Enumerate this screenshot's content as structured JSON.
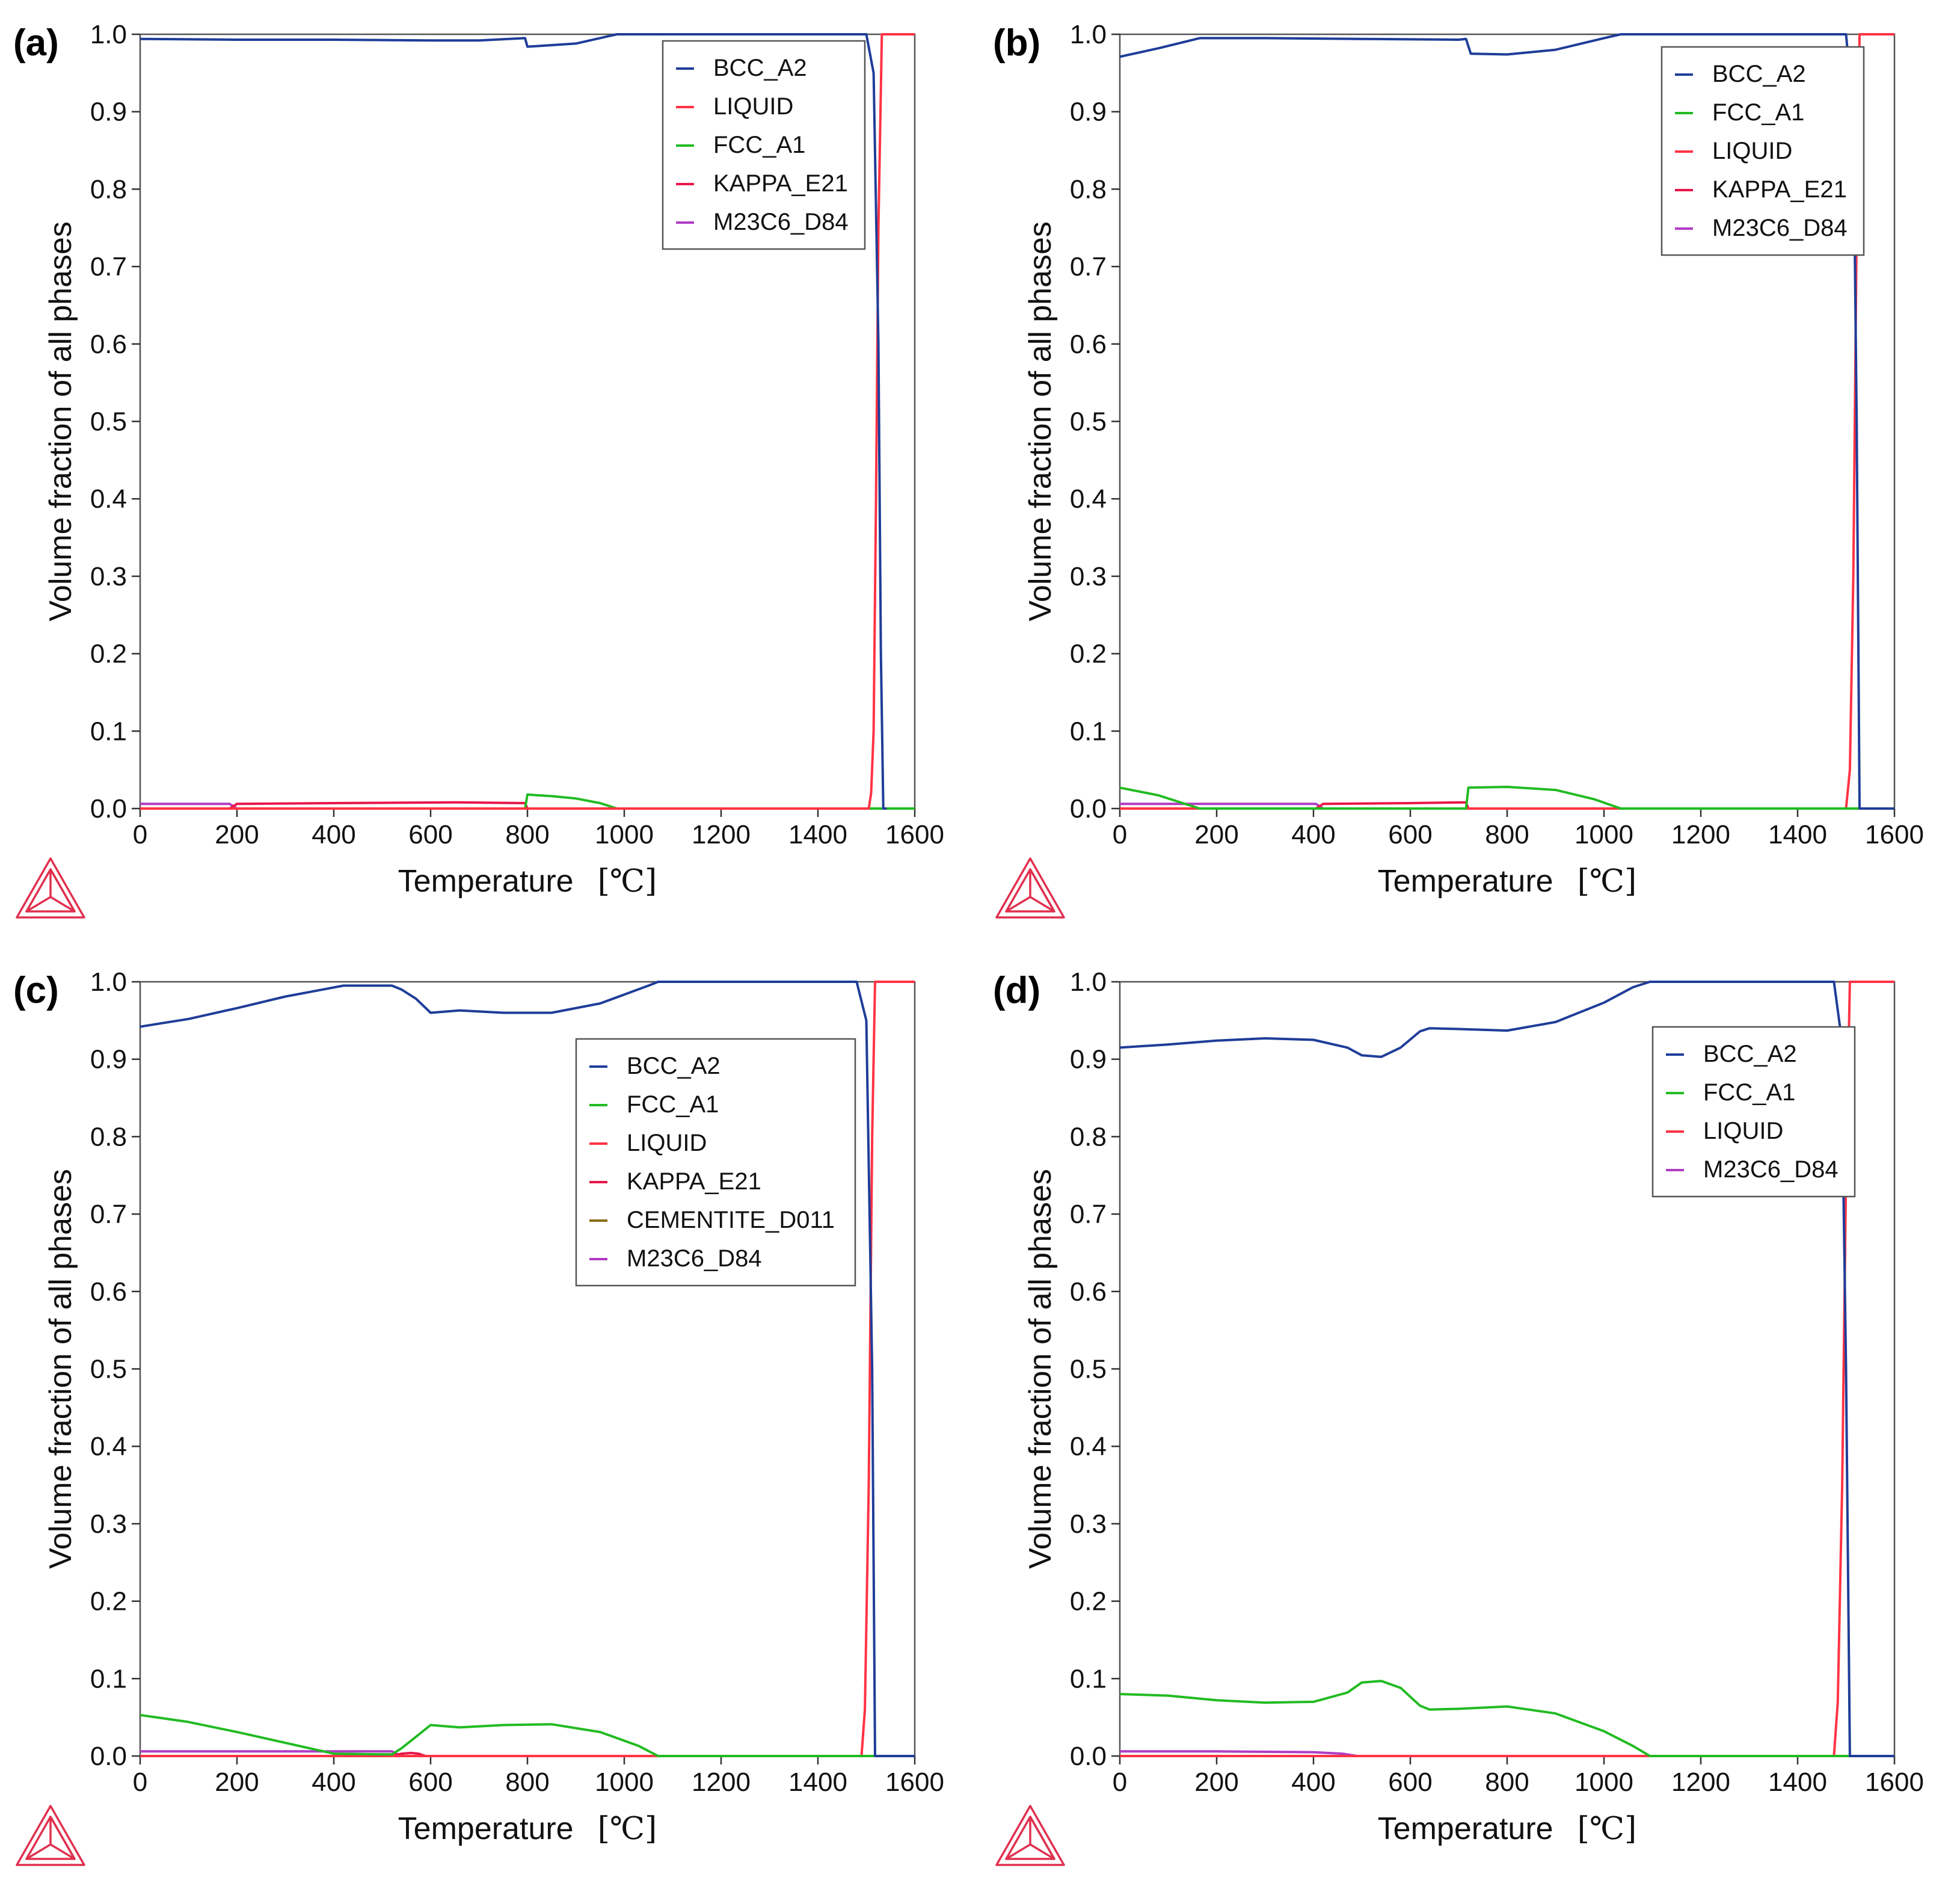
{
  "chart_data": [
    {
      "type": "line",
      "panel_label": "(a)",
      "title": "",
      "xlabel": "Temperature",
      "xunit": "[℃]",
      "ylabel": "Volume fraction of all phases",
      "xlim": [
        0,
        1600
      ],
      "ylim": [
        0,
        1.0
      ],
      "xticks": [
        "0",
        "200",
        "400",
        "600",
        "800",
        "1000",
        "1200",
        "1400",
        "1600"
      ],
      "yticks": [
        "0.0",
        "0.1",
        "0.2",
        "0.3",
        "0.4",
        "0.5",
        "0.6",
        "0.7",
        "0.8",
        "0.9",
        "1.0"
      ],
      "legend_position": "top-right",
      "series": [
        {
          "name": "BCC_A2",
          "color": "#1f3d99",
          "x": [
            0,
            200,
            400,
            600,
            700,
            795,
            800,
            900,
            985,
            1000,
            1500,
            1515,
            1525,
            1530,
            1535,
            1540
          ],
          "y": [
            0.994,
            0.993,
            0.993,
            0.992,
            0.992,
            0.995,
            0.984,
            0.988,
            1.0,
            1.0,
            1.0,
            0.95,
            0.6,
            0.2,
            0.0,
            0.0
          ]
        },
        {
          "name": "LIQUID",
          "color": "#ff3344",
          "x": [
            0,
            1505,
            1510,
            1515,
            1520,
            1525,
            1532,
            1540,
            1600
          ],
          "y": [
            0,
            0,
            0.02,
            0.1,
            0.4,
            0.75,
            1.0,
            1.0,
            1.0
          ]
        },
        {
          "name": "FCC_A1",
          "color": "#22bb22",
          "x": [
            0,
            795,
            800,
            850,
            900,
            950,
            985,
            1600
          ],
          "y": [
            0,
            0,
            0.018,
            0.016,
            0.013,
            0.007,
            0,
            0
          ]
        },
        {
          "name": "KAPPA_E21",
          "color": "#e8174a",
          "x": [
            0,
            185,
            200,
            400,
            650,
            795,
            800,
            1600
          ],
          "y": [
            0,
            0,
            0.006,
            0.007,
            0.008,
            0.007,
            0,
            0
          ]
        },
        {
          "name": "M23C6_D84",
          "color": "#b03cc4",
          "x": [
            0,
            185,
            200,
            1600
          ],
          "y": [
            0.006,
            0.006,
            0,
            0
          ]
        }
      ]
    },
    {
      "type": "line",
      "panel_label": "(b)",
      "title": "",
      "xlabel": "Temperature",
      "xunit": "[℃]",
      "ylabel": "Volume fraction of all phases",
      "xlim": [
        0,
        1600
      ],
      "ylim": [
        0,
        1.0
      ],
      "xticks": [
        "0",
        "200",
        "400",
        "600",
        "800",
        "1000",
        "1200",
        "1400",
        "1600"
      ],
      "yticks": [
        "0.0",
        "0.1",
        "0.2",
        "0.3",
        "0.4",
        "0.5",
        "0.6",
        "0.7",
        "0.8",
        "0.9",
        "1.0"
      ],
      "legend_position": "top-right",
      "series": [
        {
          "name": "BCC_A2",
          "color": "#1f3d99",
          "x": [
            0,
            80,
            165,
            300,
            500,
            700,
            715,
            725,
            800,
            900,
            1000,
            1035,
            1500,
            1515,
            1522,
            1528,
            1600
          ],
          "y": [
            0.971,
            0.982,
            0.995,
            0.995,
            0.994,
            0.993,
            0.994,
            0.975,
            0.974,
            0.98,
            0.995,
            1.0,
            1.0,
            0.9,
            0.5,
            0.0,
            0.0
          ]
        },
        {
          "name": "FCC_A1",
          "color": "#22bb22",
          "x": [
            0,
            80,
            165,
            715,
            720,
            800,
            900,
            980,
            1035,
            1600
          ],
          "y": [
            0.027,
            0.017,
            0,
            0,
            0.027,
            0.028,
            0.024,
            0.012,
            0,
            0
          ]
        },
        {
          "name": "LIQUID",
          "color": "#ff3344",
          "x": [
            0,
            1500,
            1508,
            1515,
            1522,
            1528,
            1600
          ],
          "y": [
            0,
            0,
            0.05,
            0.3,
            0.75,
            1.0,
            1.0
          ]
        },
        {
          "name": "KAPPA_E21",
          "color": "#e8174a",
          "x": [
            0,
            405,
            420,
            600,
            715,
            720,
            1600
          ],
          "y": [
            0,
            0,
            0.006,
            0.007,
            0.008,
            0,
            0
          ]
        },
        {
          "name": "M23C6_D84",
          "color": "#b03cc4",
          "x": [
            0,
            405,
            420,
            1600
          ],
          "y": [
            0.006,
            0.006,
            0,
            0
          ]
        }
      ]
    },
    {
      "type": "line",
      "panel_label": "(c)",
      "title": "",
      "xlabel": "Temperature",
      "xunit": "[℃]",
      "ylabel": "Volume fraction of all phases",
      "xlim": [
        0,
        1600
      ],
      "ylim": [
        0,
        1.0
      ],
      "xticks": [
        "0",
        "200",
        "400",
        "600",
        "800",
        "1000",
        "1200",
        "1400",
        "1600"
      ],
      "yticks": [
        "0.0",
        "0.1",
        "0.2",
        "0.3",
        "0.4",
        "0.5",
        "0.6",
        "0.7",
        "0.8",
        "0.9",
        "1.0"
      ],
      "legend_position": "top-right",
      "series": [
        {
          "name": "BCC_A2",
          "color": "#1f3d99",
          "x": [
            0,
            100,
            200,
            300,
            420,
            520,
            540,
            570,
            600,
            660,
            750,
            850,
            950,
            1050,
            1070,
            1480,
            1500,
            1512,
            1518,
            1600
          ],
          "y": [
            0.942,
            0.952,
            0.966,
            0.981,
            0.995,
            0.995,
            0.99,
            0.978,
            0.96,
            0.963,
            0.96,
            0.96,
            0.972,
            0.995,
            1.0,
            1.0,
            0.95,
            0.5,
            0.0,
            0.0
          ]
        },
        {
          "name": "FCC_A1",
          "color": "#22bb22",
          "x": [
            0,
            100,
            200,
            300,
            400,
            520,
            540,
            570,
            600,
            660,
            750,
            850,
            950,
            1030,
            1070,
            1600
          ],
          "y": [
            0.053,
            0.044,
            0.031,
            0.017,
            0.003,
            0.002,
            0.01,
            0.025,
            0.04,
            0.037,
            0.04,
            0.041,
            0.031,
            0.013,
            0,
            0
          ]
        },
        {
          "name": "LIQUID",
          "color": "#ff3344",
          "x": [
            0,
            1490,
            1497,
            1505,
            1512,
            1518,
            1600
          ],
          "y": [
            0,
            0,
            0.06,
            0.35,
            0.8,
            1.0,
            1.0
          ]
        },
        {
          "name": "KAPPA_E21",
          "color": "#e8174a",
          "x": [
            0,
            520,
            540,
            560,
            575,
            590,
            1600
          ],
          "y": [
            0,
            0,
            0.003,
            0.004,
            0.003,
            0,
            0
          ]
        },
        {
          "name": "CEMENTITE_D011",
          "color": "#8a6d12",
          "x": [
            0,
            400,
            410,
            520,
            540,
            1600
          ],
          "y": [
            0,
            0,
            0.002,
            0.002,
            0,
            0
          ]
        },
        {
          "name": "M23C6_D84",
          "color": "#b03cc4",
          "x": [
            0,
            520,
            540,
            1600
          ],
          "y": [
            0.006,
            0.006,
            0,
            0
          ]
        }
      ]
    },
    {
      "type": "line",
      "panel_label": "(d)",
      "title": "",
      "xlabel": "Temperature",
      "xunit": "[℃]",
      "ylabel": "Volume fraction of all phases",
      "xlim": [
        0,
        1600
      ],
      "ylim": [
        0,
        1.0
      ],
      "xticks": [
        "0",
        "200",
        "400",
        "600",
        "800",
        "1000",
        "1200",
        "1400",
        "1600"
      ],
      "yticks": [
        "0.0",
        "0.1",
        "0.2",
        "0.3",
        "0.4",
        "0.5",
        "0.6",
        "0.7",
        "0.8",
        "0.9",
        "1.0"
      ],
      "legend_position": "top-right",
      "series": [
        {
          "name": "BCC_A2",
          "color": "#1f3d99",
          "x": [
            0,
            100,
            200,
            300,
            400,
            470,
            500,
            540,
            580,
            620,
            640,
            700,
            800,
            900,
            1000,
            1060,
            1095,
            1475,
            1490,
            1500,
            1508,
            1600
          ],
          "y": [
            0.915,
            0.919,
            0.924,
            0.927,
            0.925,
            0.915,
            0.905,
            0.903,
            0.915,
            0.936,
            0.94,
            0.939,
            0.937,
            0.948,
            0.973,
            0.993,
            1.0,
            1.0,
            0.93,
            0.5,
            0.0,
            0.0
          ]
        },
        {
          "name": "FCC_A1",
          "color": "#22bb22",
          "x": [
            0,
            100,
            200,
            300,
            400,
            470,
            500,
            540,
            580,
            620,
            640,
            700,
            800,
            900,
            1000,
            1060,
            1095,
            1600
          ],
          "y": [
            0.08,
            0.078,
            0.072,
            0.069,
            0.07,
            0.082,
            0.095,
            0.097,
            0.088,
            0.065,
            0.06,
            0.061,
            0.064,
            0.055,
            0.032,
            0.013,
            0,
            0
          ]
        },
        {
          "name": "LIQUID",
          "color": "#ff3344",
          "x": [
            0,
            1475,
            1483,
            1492,
            1500,
            1508,
            1600
          ],
          "y": [
            0,
            0,
            0.07,
            0.35,
            0.75,
            1.0,
            1.0
          ]
        },
        {
          "name": "M23C6_D84",
          "color": "#b03cc4",
          "x": [
            0,
            200,
            400,
            460,
            490,
            1600
          ],
          "y": [
            0.006,
            0.006,
            0.005,
            0.003,
            0,
            0
          ]
        }
      ]
    }
  ]
}
